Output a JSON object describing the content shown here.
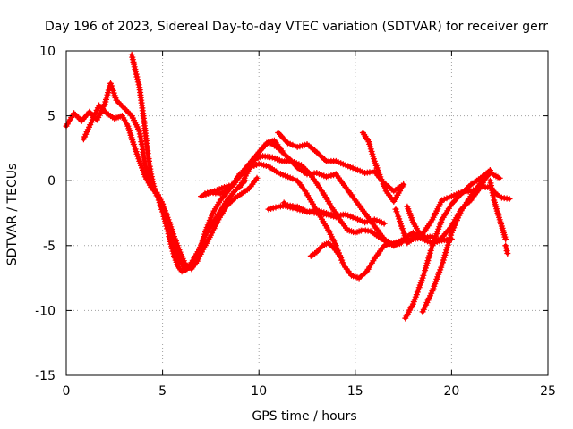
{
  "chart_data": {
    "type": "scatter",
    "title": "Day 196 of 2023, Sidereal Day-to-day VTEC variation (SDTVAR) for receiver gerr",
    "xlabel": "GPS time / hours",
    "ylabel": "SDTVAR / TECUs",
    "xlim": [
      0,
      25
    ],
    "ylim": [
      -15,
      10
    ],
    "xticks": [
      0,
      5,
      10,
      15,
      20,
      25
    ],
    "yticks": [
      -15,
      -10,
      -5,
      0,
      5,
      10
    ],
    "grid": true,
    "marker": "+",
    "color": "#ff0000",
    "series": [
      {
        "name": "trace-1",
        "x": [
          0.0,
          0.4,
          0.8,
          1.2,
          1.6,
          2.0,
          2.3,
          2.6,
          3.0,
          3.4,
          3.8,
          4.1,
          4.4,
          4.7,
          5.0,
          5.3,
          5.6,
          5.9,
          6.2,
          6.4,
          6.7,
          7.0,
          7.3,
          7.6,
          8.0,
          8.4,
          8.8,
          9.2,
          9.6,
          10.0,
          10.4,
          10.8,
          11.2
        ],
        "y": [
          4.2,
          5.2,
          4.6,
          5.3,
          4.7,
          5.9,
          7.5,
          6.2,
          5.6,
          5.0,
          3.8,
          1.2,
          -0.3,
          -0.9,
          -1.8,
          -3.2,
          -4.8,
          -6.2,
          -6.9,
          -6.6,
          -6.0,
          -5.0,
          -3.6,
          -2.5,
          -1.5,
          -0.8,
          0.0,
          0.7,
          1.5,
          2.2,
          2.9,
          3.1,
          2.3
        ]
      },
      {
        "name": "trace-2",
        "x": [
          0.9,
          1.3,
          1.7,
          2.1,
          2.5,
          2.9,
          3.2,
          3.5,
          3.8,
          4.1,
          4.4,
          4.7,
          5.0,
          5.3,
          5.6,
          5.9,
          6.2,
          6.5,
          6.8,
          7.1,
          7.5,
          7.9,
          8.3,
          8.7,
          9.1,
          9.5,
          9.9
        ],
        "y": [
          3.2,
          4.5,
          5.8,
          5.2,
          4.8,
          5.0,
          4.2,
          2.8,
          1.5,
          0.3,
          -0.5,
          -1.0,
          -1.8,
          -3.0,
          -4.3,
          -5.5,
          -6.5,
          -6.8,
          -6.2,
          -5.3,
          -4.2,
          -3.0,
          -2.0,
          -1.4,
          -1.0,
          -0.6,
          0.2
        ]
      },
      {
        "name": "trace-3",
        "x": [
          3.4,
          3.6,
          3.8,
          4.0,
          4.2,
          4.4,
          4.6,
          4.8,
          5.0,
          5.2,
          5.4,
          5.6,
          5.8,
          6.0,
          6.2,
          6.5,
          6.9,
          7.3,
          7.8,
          8.3,
          8.8,
          9.3
        ],
        "y": [
          9.7,
          8.4,
          7.2,
          5.0,
          2.5,
          0.5,
          -0.8,
          -1.5,
          -2.4,
          -3.5,
          -4.7,
          -5.8,
          -6.6,
          -7.0,
          -6.9,
          -6.3,
          -5.3,
          -4.0,
          -2.8,
          -1.6,
          -0.7,
          0.0
        ]
      },
      {
        "name": "trace-4",
        "x": [
          7.0,
          7.5,
          8.0,
          8.5,
          9.0,
          9.5,
          10.0,
          10.5,
          11.0,
          11.5,
          12.0,
          12.4,
          12.8,
          13.2,
          13.6,
          14.0,
          14.4,
          14.8,
          15.2,
          15.6,
          16.0,
          16.5,
          17.0,
          17.5,
          18.0,
          18.5,
          19.0
        ],
        "y": [
          -1.2,
          -0.9,
          -1.0,
          -0.6,
          0.5,
          1.0,
          1.3,
          1.1,
          0.6,
          0.3,
          0.0,
          -0.8,
          -1.8,
          -2.8,
          -3.8,
          -5.0,
          -6.5,
          -7.3,
          -7.5,
          -7.0,
          -6.0,
          -5.0,
          -4.8,
          -4.6,
          -4.5,
          -4.4,
          -4.3
        ]
      },
      {
        "name": "trace-5",
        "x": [
          7.2,
          7.7,
          8.2,
          8.7,
          9.2,
          9.7,
          10.2,
          10.7,
          11.2,
          11.7,
          12.2,
          12.6,
          13.0,
          13.4,
          13.8,
          14.2,
          14.6,
          15.0,
          15.4,
          15.8,
          16.2,
          16.6,
          17.0,
          17.4
        ],
        "y": [
          -1.0,
          -0.8,
          -0.5,
          -0.3,
          0.8,
          1.6,
          1.9,
          1.8,
          1.5,
          1.5,
          1.2,
          0.6,
          -0.2,
          -1.1,
          -2.1,
          -3.0,
          -3.8,
          -4.0,
          -3.8,
          -3.9,
          -4.3,
          -4.7,
          -5.0,
          -4.8
        ]
      },
      {
        "name": "trace-6",
        "x": [
          9.0,
          9.5,
          10.0,
          10.5,
          11.0,
          11.5,
          12.0,
          12.5,
          13.0,
          13.5,
          14.0,
          14.5,
          15.0,
          15.5,
          16.0,
          16.5,
          17.0,
          17.5,
          18.0,
          18.5,
          19.0,
          19.5,
          20.0
        ],
        "y": [
          -0.5,
          0.9,
          2.2,
          3.0,
          2.5,
          1.8,
          1.0,
          0.5,
          0.6,
          0.3,
          0.5,
          -0.5,
          -1.5,
          -2.5,
          -3.5,
          -4.5,
          -5.0,
          -4.5,
          -4.0,
          -4.5,
          -4.8,
          -4.6,
          -4.5
        ]
      },
      {
        "name": "trace-7",
        "x": [
          10.5,
          11.0,
          11.5,
          12.0,
          12.5,
          13.0,
          13.5,
          14.0,
          14.5,
          15.0,
          15.5,
          16.0,
          16.5
        ],
        "y": [
          -2.2,
          -2.0,
          -1.9,
          -2.0,
          -2.4,
          -2.3,
          -2.5,
          -2.7,
          -2.6,
          -2.9,
          -3.2,
          -3.0,
          -3.3
        ]
      },
      {
        "name": "trace-8",
        "x": [
          11.0,
          11.5,
          12.0,
          12.5,
          13.0,
          13.5,
          14.0,
          14.5,
          15.0,
          15.5,
          16.0,
          16.5,
          17.0,
          17.5
        ],
        "y": [
          3.7,
          2.9,
          2.6,
          2.8,
          2.2,
          1.5,
          1.5,
          1.2,
          0.9,
          0.6,
          0.7,
          -0.2,
          -0.8,
          -0.3
        ]
      },
      {
        "name": "trace-9",
        "x": [
          11.3,
          11.5,
          12.0,
          12.5,
          13.0,
          13.5,
          14.0
        ],
        "y": [
          -1.7,
          -2.0,
          -2.2,
          -2.4,
          -2.5,
          -2.6,
          -2.8
        ]
      },
      {
        "name": "trace-10",
        "x": [
          12.7,
          13.0,
          13.3,
          13.6,
          13.9,
          14.2
        ],
        "y": [
          -5.8,
          -5.5,
          -5.0,
          -4.8,
          -5.2,
          -5.8
        ]
      },
      {
        "name": "trace-11",
        "x": [
          15.4,
          15.7,
          16.0,
          16.3,
          16.6,
          17.0,
          17.5
        ],
        "y": [
          3.7,
          3.0,
          1.5,
          0.3,
          -0.8,
          -1.6,
          -0.3
        ]
      },
      {
        "name": "trace-12",
        "x": [
          17.1,
          17.4,
          17.7,
          18.0,
          18.3,
          18.6
        ],
        "y": [
          -2.2,
          -3.5,
          -4.8,
          -4.5,
          -4.2,
          -4.3
        ]
      },
      {
        "name": "trace-13",
        "x": [
          17.6,
          18.0,
          18.5,
          19.0,
          19.5,
          20.0,
          20.5,
          21.0,
          21.5,
          22.0
        ],
        "y": [
          -10.6,
          -9.5,
          -7.5,
          -5.0,
          -3.0,
          -1.8,
          -1.0,
          -0.3,
          0.2,
          0.8
        ]
      },
      {
        "name": "trace-14",
        "x": [
          18.5,
          19.0,
          19.5,
          20.0,
          20.5,
          21.0,
          21.5,
          22.0,
          22.5
        ],
        "y": [
          -10.1,
          -8.5,
          -6.5,
          -4.0,
          -2.3,
          -1.2,
          -0.2,
          0.6,
          0.2
        ]
      },
      {
        "name": "trace-15",
        "x": [
          17.7,
          18.0,
          18.5,
          19.0,
          19.5,
          20.0,
          20.5,
          21.0,
          21.5,
          22.0
        ],
        "y": [
          -2.0,
          -3.2,
          -4.5,
          -4.8,
          -4.4,
          -3.5,
          -2.2,
          -1.5,
          -0.5,
          0.8
        ]
      },
      {
        "name": "trace-16",
        "x": [
          18.0,
          18.5,
          19.0,
          19.5,
          20.0,
          20.5,
          21.0,
          21.5,
          22.0,
          22.3,
          22.6,
          23.0
        ],
        "y": [
          -4.3,
          -4.1,
          -3.0,
          -1.5,
          -1.2,
          -0.9,
          -0.8,
          -0.5,
          -0.5,
          -1.0,
          -1.3,
          -1.4
        ]
      },
      {
        "name": "trace-17",
        "x": [
          22.0,
          22.2,
          22.4,
          22.6,
          22.8
        ],
        "y": [
          0.0,
          -1.5,
          -2.5,
          -3.5,
          -4.5
        ]
      },
      {
        "name": "trace-18",
        "x": [
          22.8,
          22.9
        ],
        "y": [
          -5.0,
          -5.6
        ]
      }
    ]
  }
}
